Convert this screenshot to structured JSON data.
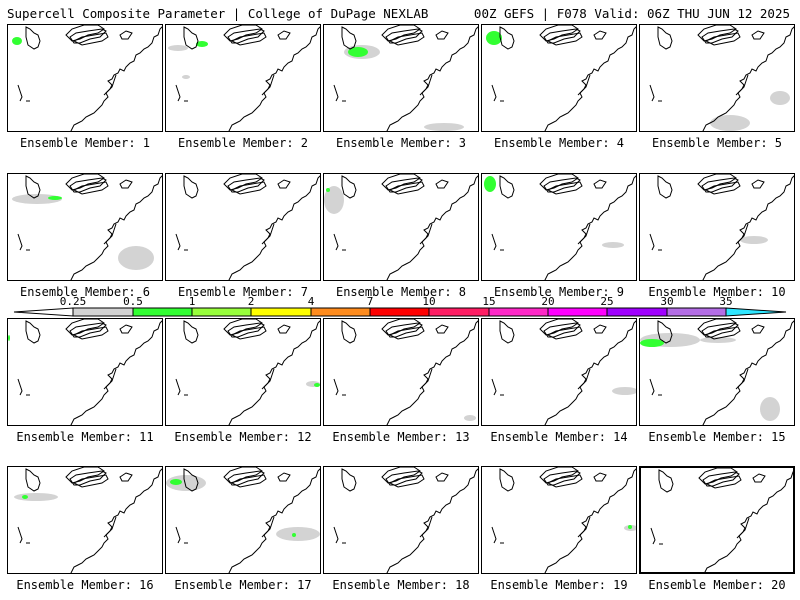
{
  "header": {
    "left": "Supercell Composite Parameter | College of DuPage NEXLAB",
    "right": "00Z GEFS | F078 Valid: 06Z THU JUN 12 2025"
  },
  "colorbar": {
    "ticks": [
      "0.25",
      "0.5",
      "1",
      "2",
      "4",
      "7",
      "10",
      "15",
      "20",
      "25",
      "30",
      "35"
    ],
    "colors": [
      "#d3d3d3",
      "#32ff32",
      "#98ff3c",
      "#ffff00",
      "#ff8c1e",
      "#ff0000",
      "#ff1e64",
      "#ff28c8",
      "#ff00ff",
      "#a000ff",
      "#b46ee6",
      "#30e6ff"
    ]
  },
  "caption_prefix": "Ensemble Member: ",
  "members": [
    {
      "label": "Ensemble Member: 1"
    },
    {
      "label": "Ensemble Member: 2"
    },
    {
      "label": "Ensemble Member: 3"
    },
    {
      "label": "Ensemble Member: 4"
    },
    {
      "label": "Ensemble Member: 5"
    },
    {
      "label": "Ensemble Member: 6"
    },
    {
      "label": "Ensemble Member: 7"
    },
    {
      "label": "Ensemble Member: 8"
    },
    {
      "label": "Ensemble Member: 9"
    },
    {
      "label": "Ensemble Member: 10"
    },
    {
      "label": "Ensemble Member: 11"
    },
    {
      "label": "Ensemble Member: 12"
    },
    {
      "label": "Ensemble Member: 13"
    },
    {
      "label": "Ensemble Member: 14"
    },
    {
      "label": "Ensemble Member: 15"
    },
    {
      "label": "Ensemble Member: 16"
    },
    {
      "label": "Ensemble Member: 17"
    },
    {
      "label": "Ensemble Member: 18"
    },
    {
      "label": "Ensemble Member: 19"
    },
    {
      "label": "Ensemble Member: 20"
    }
  ]
}
